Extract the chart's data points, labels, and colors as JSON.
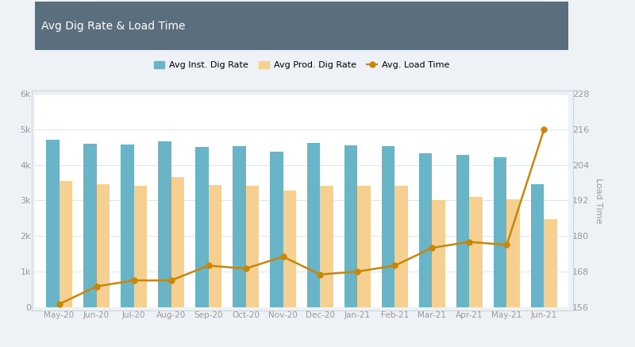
{
  "categories": [
    "May-20",
    "Jun-20",
    "Jul-20",
    "Aug-20",
    "Sep-20",
    "Oct-20",
    "Nov-20",
    "Dec-20",
    "Jan-21",
    "Feb-21",
    "Mar-21",
    "Apr-21",
    "May-21",
    "Jun-21"
  ],
  "avg_inst_dig_rate": [
    4700,
    4600,
    4580,
    4650,
    4500,
    4520,
    4380,
    4620,
    4550,
    4530,
    4320,
    4280,
    4220,
    3450
  ],
  "avg_prod_dig_rate": [
    3550,
    3450,
    3400,
    3650,
    3430,
    3420,
    3280,
    3420,
    3400,
    3420,
    3010,
    3100,
    3020,
    2480
  ],
  "avg_load_time": [
    157,
    163,
    165,
    165,
    170,
    169,
    173,
    167,
    168,
    170,
    176,
    178,
    177,
    216
  ],
  "bar_color_inst": "#6ab4c8",
  "bar_color_prod": "#f5d090",
  "line_color": "#c8860a",
  "title": "Avg Dig Rate & Load Time",
  "title_bg": "#5a6e7e",
  "title_fg": "white",
  "ylabel_right": "Load Time",
  "ylim_left": [
    0,
    6000
  ],
  "ylim_right": [
    156,
    228
  ],
  "yticks_left": [
    0,
    1000,
    2000,
    3000,
    4000,
    5000,
    6000
  ],
  "ytick_labels_left": [
    "0",
    "1k",
    "2k",
    "3k",
    "4k",
    "5k",
    "6k"
  ],
  "yticks_right": [
    156,
    168,
    180,
    192,
    204,
    216,
    228
  ],
  "outer_bg": "#eef2f7",
  "plot_bg": "#ffffff",
  "grid_color": "#dde6ef",
  "legend_labels": [
    "Avg Inst. Dig Rate",
    "Avg Prod. Dig Rate",
    "Avg. Load Time"
  ]
}
